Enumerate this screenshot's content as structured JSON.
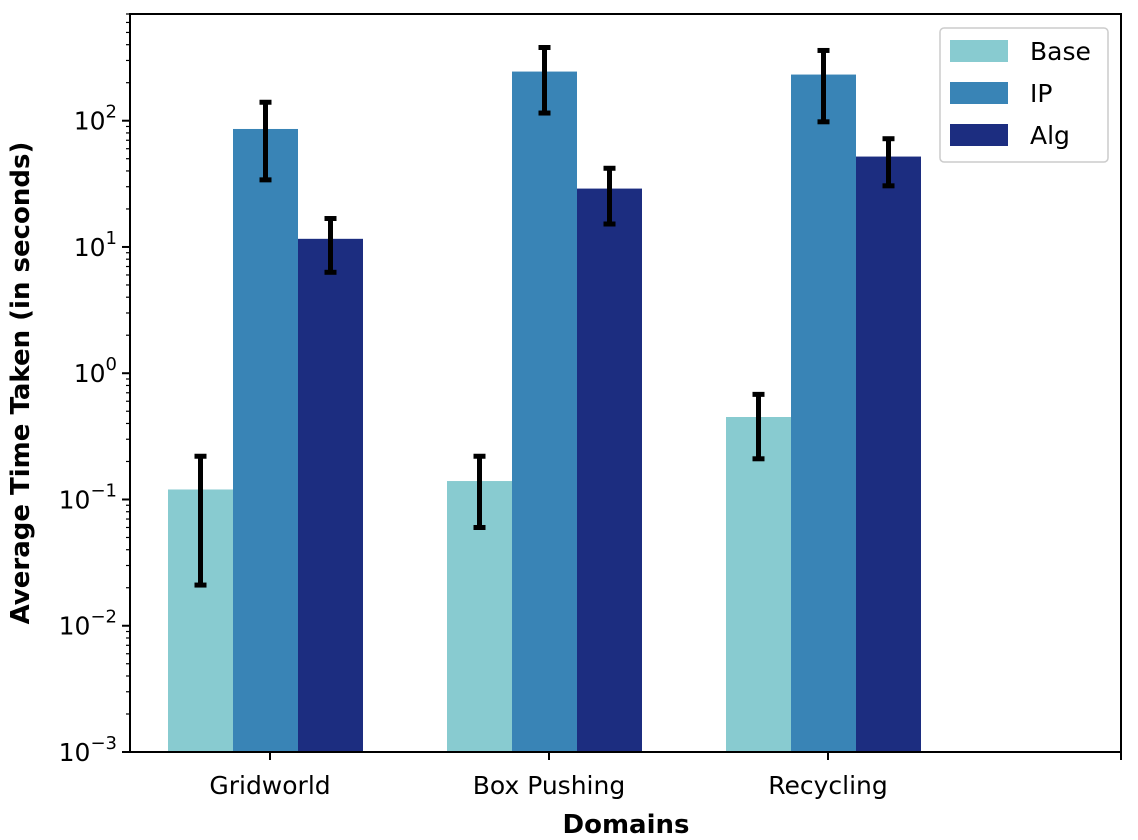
{
  "chart_data": {
    "type": "bar",
    "title": "",
    "xlabel": "Domains",
    "ylabel": "Average Time Taken (in seconds)",
    "yscale": "log",
    "ylim": [
      0.001,
      700
    ],
    "categories": [
      "Gridworld",
      "Box Pushing",
      "Recycling"
    ],
    "y_ticks": [
      {
        "value": 0.001,
        "base": "10",
        "exp": "−3"
      },
      {
        "value": 0.01,
        "base": "10",
        "exp": "−2"
      },
      {
        "value": 0.1,
        "base": "10",
        "exp": "−1"
      },
      {
        "value": 1,
        "base": "10",
        "exp": "0"
      },
      {
        "value": 10,
        "base": "10",
        "exp": "1"
      },
      {
        "value": 100,
        "base": "10",
        "exp": "2"
      }
    ],
    "legend": {
      "position": "top-right"
    },
    "series": [
      {
        "name": "Base",
        "color": "#88cbd0",
        "values": [
          0.12,
          0.14,
          0.45
        ],
        "err_low": [
          0.021,
          0.06,
          0.21
        ],
        "err_high": [
          0.22,
          0.22,
          0.68
        ]
      },
      {
        "name": "IP",
        "color": "#3984b6",
        "values": [
          86,
          245,
          232
        ],
        "err_low": [
          34,
          115,
          98
        ],
        "err_high": [
          140,
          380,
          360
        ]
      },
      {
        "name": "Alg",
        "color": "#1c2d80",
        "values": [
          11.6,
          29,
          52
        ],
        "err_low": [
          6.3,
          15.2,
          30.5
        ],
        "err_high": [
          16.8,
          42,
          72
        ]
      }
    ]
  }
}
